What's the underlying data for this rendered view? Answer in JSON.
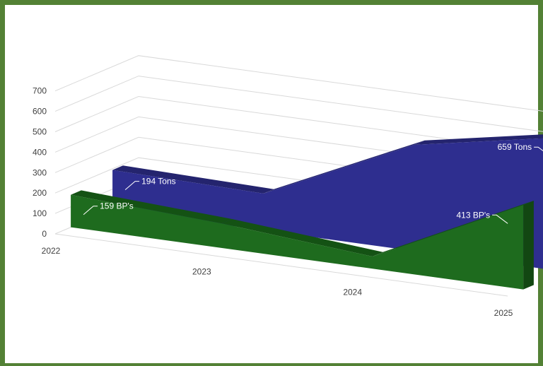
{
  "chart_data": {
    "type": "area",
    "categories": [
      "2022",
      "2023",
      "2024",
      "2025"
    ],
    "series": [
      {
        "values": [
          194,
          180,
          520,
          659
        ],
        "color": "#2E2E8F",
        "color_top": "#24246E",
        "color_side": "#1E1E66"
      },
      {
        "values": [
          159,
          120,
          60,
          413
        ],
        "color": "#1E6B1E",
        "color_top": "#145214",
        "color_side": "#124712"
      }
    ],
    "data_labels": [
      {
        "series": 0,
        "point": 0,
        "text": "194 Tons"
      },
      {
        "series": 0,
        "point": 3,
        "text": "659 Tons"
      },
      {
        "series": 1,
        "point": 0,
        "text": "159 BP's"
      },
      {
        "series": 1,
        "point": 3,
        "text": "413 BP's"
      }
    ],
    "y_ticks": [
      0,
      100,
      200,
      300,
      400,
      500,
      600,
      700
    ],
    "ylim": [
      0,
      700
    ],
    "grid": true,
    "legend": "none",
    "projection": "3d"
  }
}
